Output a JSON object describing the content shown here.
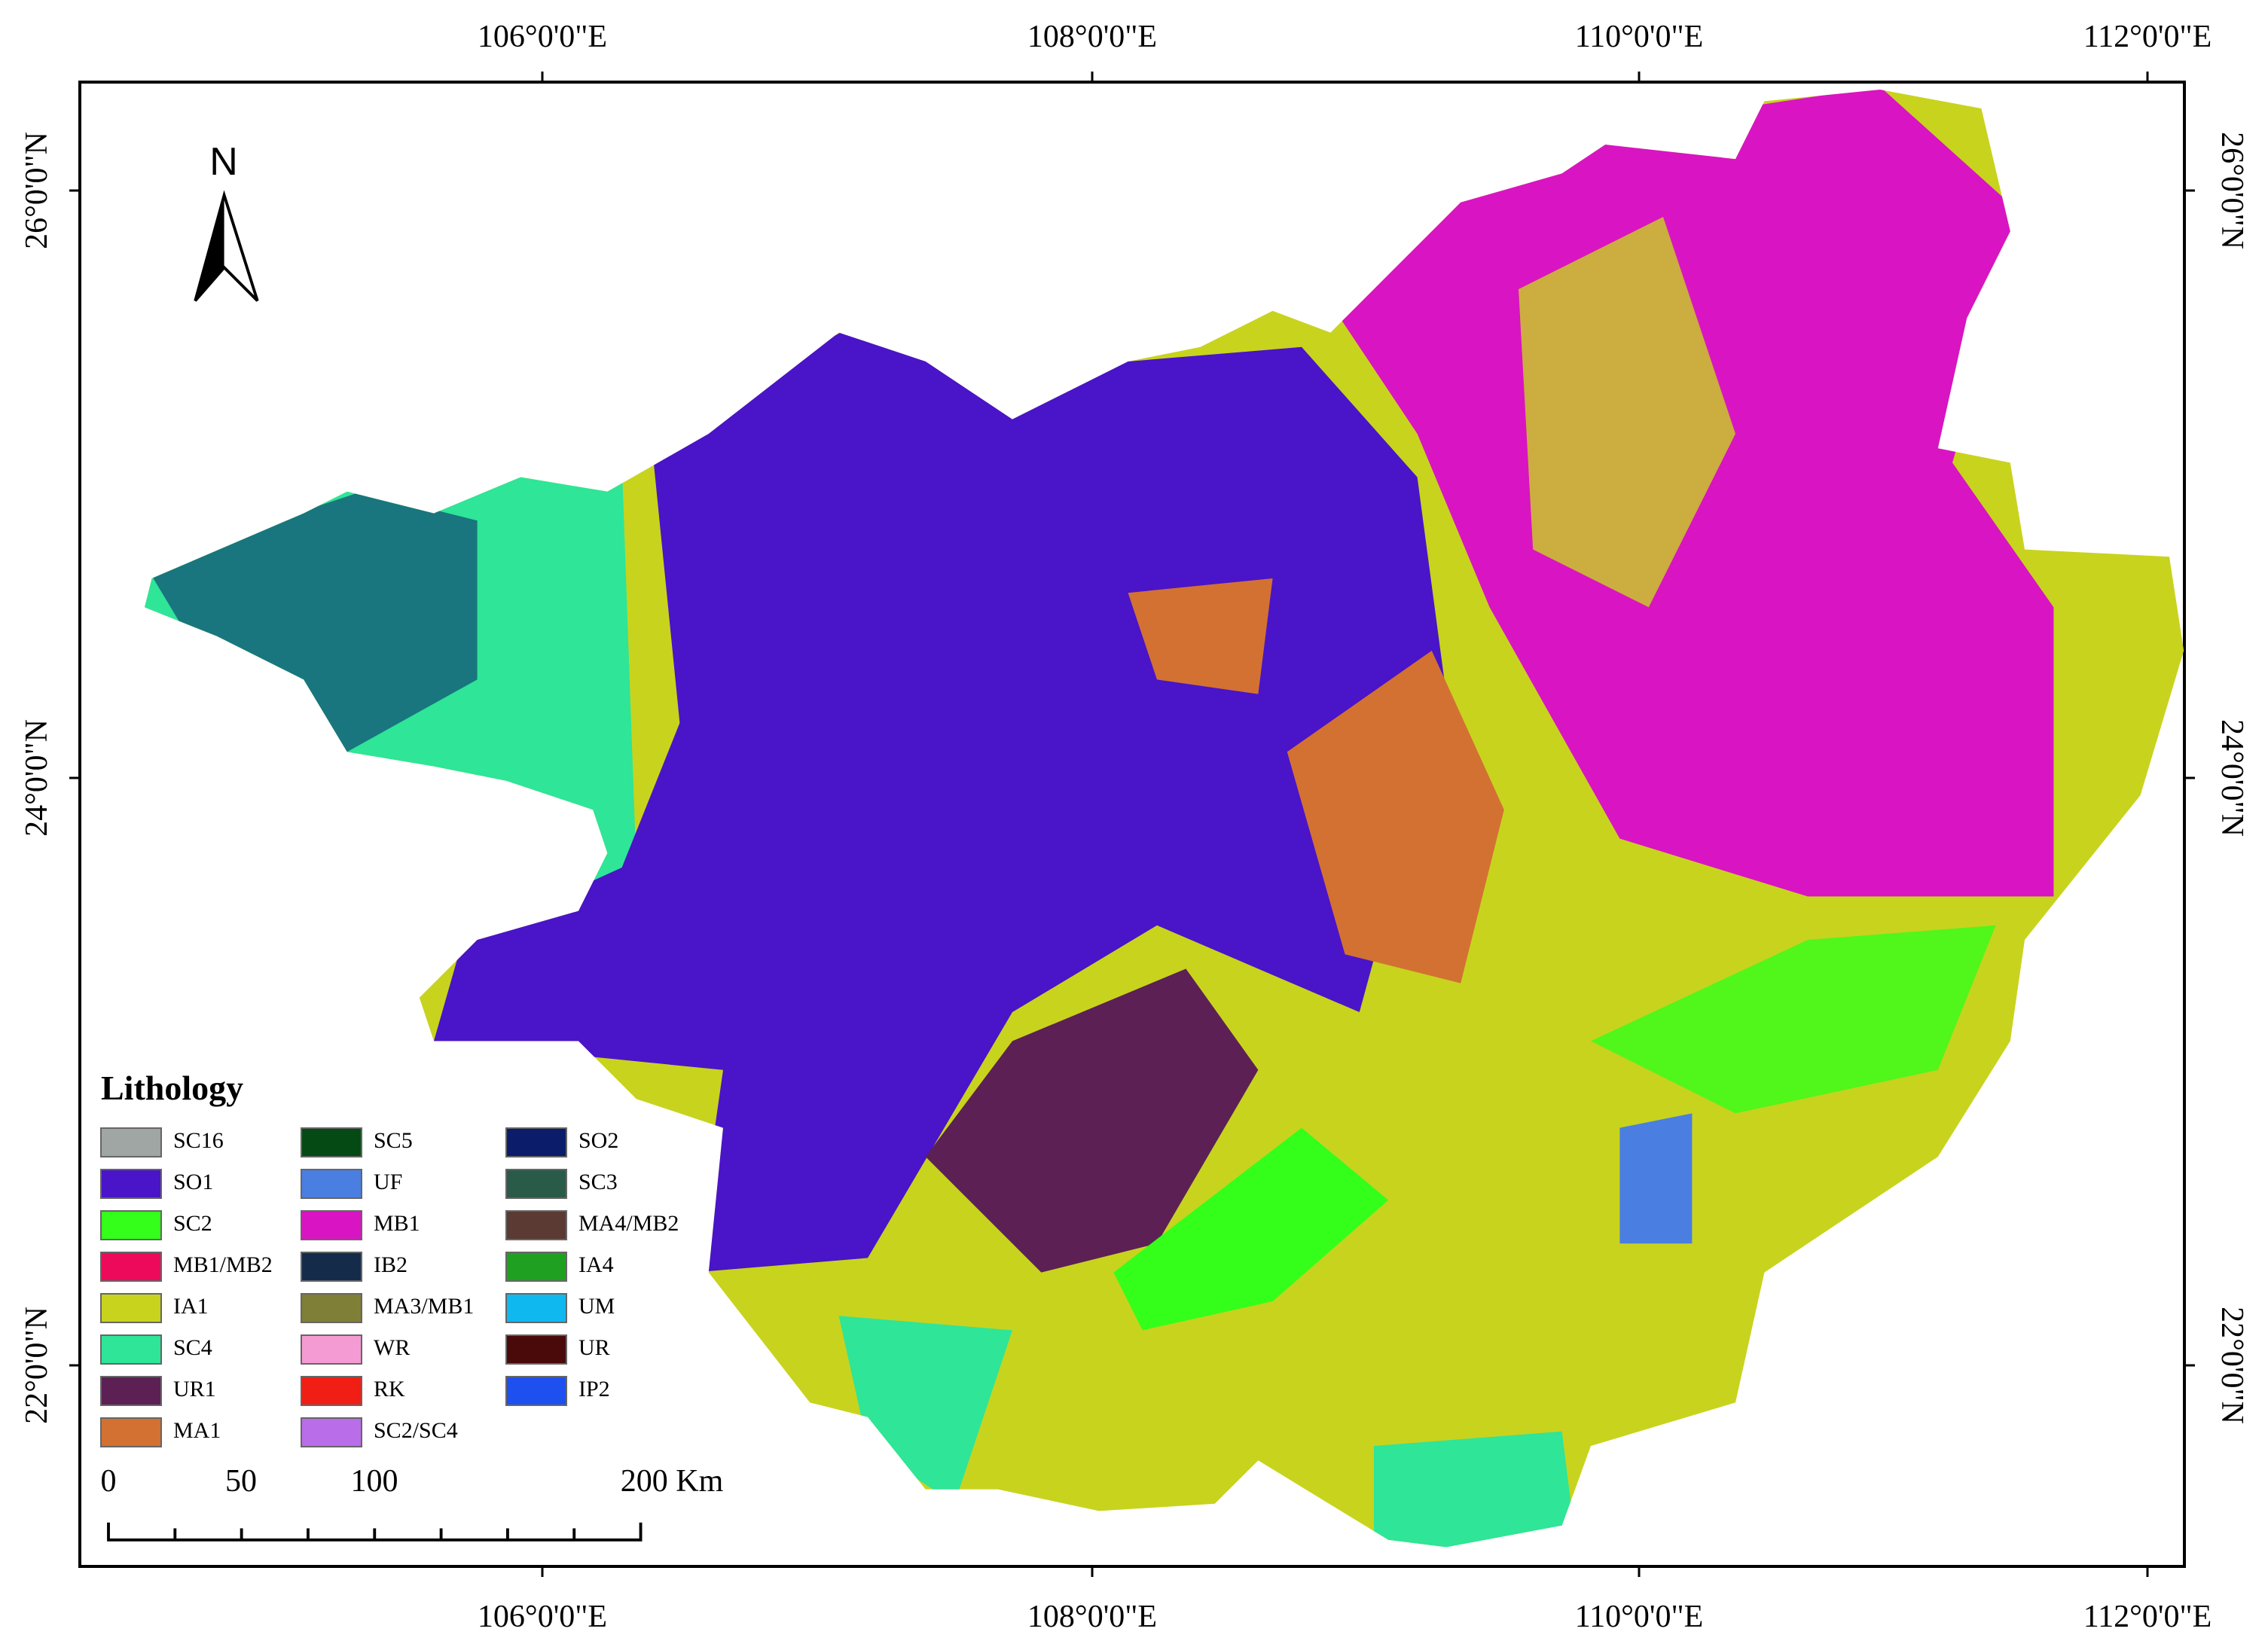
{
  "map": {
    "north_label": "N",
    "longitude_labels": [
      "106°0'0\"E",
      "108°0'0\"E",
      "110°0'0\"E",
      "112°0'0\"E"
    ],
    "latitude_labels": [
      "26°0'0\"N",
      "24°0'0\"N",
      "22°0'0\"N"
    ],
    "legend": {
      "title": "Lithology",
      "items": [
        {
          "name": "SC16",
          "color": "#a0a6a3"
        },
        {
          "name": "SO1",
          "color": "#4a14c8"
        },
        {
          "name": "SC2",
          "color": "#33ff1a"
        },
        {
          "name": "MB1/MB2",
          "color": "#ee0a5a"
        },
        {
          "name": "IA1",
          "color": "#c8d31e"
        },
        {
          "name": "SC4",
          "color": "#2ee598"
        },
        {
          "name": "UR1",
          "color": "#5c2055"
        },
        {
          "name": "MA1",
          "color": "#d37132"
        },
        {
          "name": "SC5",
          "color": "#054a14"
        },
        {
          "name": "UF",
          "color": "#4a7ee0"
        },
        {
          "name": "MB1",
          "color": "#d914c2"
        },
        {
          "name": "IB2",
          "color": "#152b4a"
        },
        {
          "name": "MA3/MB1",
          "color": "#7f7f37"
        },
        {
          "name": "WR",
          "color": "#f59bd4"
        },
        {
          "name": "RK",
          "color": "#f01e14"
        },
        {
          "name": "SC2/SC4",
          "color": "#b96de8"
        },
        {
          "name": "SO2",
          "color": "#0a1c6a"
        },
        {
          "name": "SC3",
          "color": "#2a5a48"
        },
        {
          "name": "MA4/MB2",
          "color": "#5a3a33"
        },
        {
          "name": "IA4",
          "color": "#20a020"
        },
        {
          "name": "UM",
          "color": "#10b8f0"
        },
        {
          "name": "UR",
          "color": "#4a0a0a"
        },
        {
          "name": "IP2",
          "color": "#1e50f0"
        }
      ]
    },
    "scale_bar": {
      "labels": [
        "0",
        "50",
        "100",
        "200 Km"
      ]
    }
  }
}
